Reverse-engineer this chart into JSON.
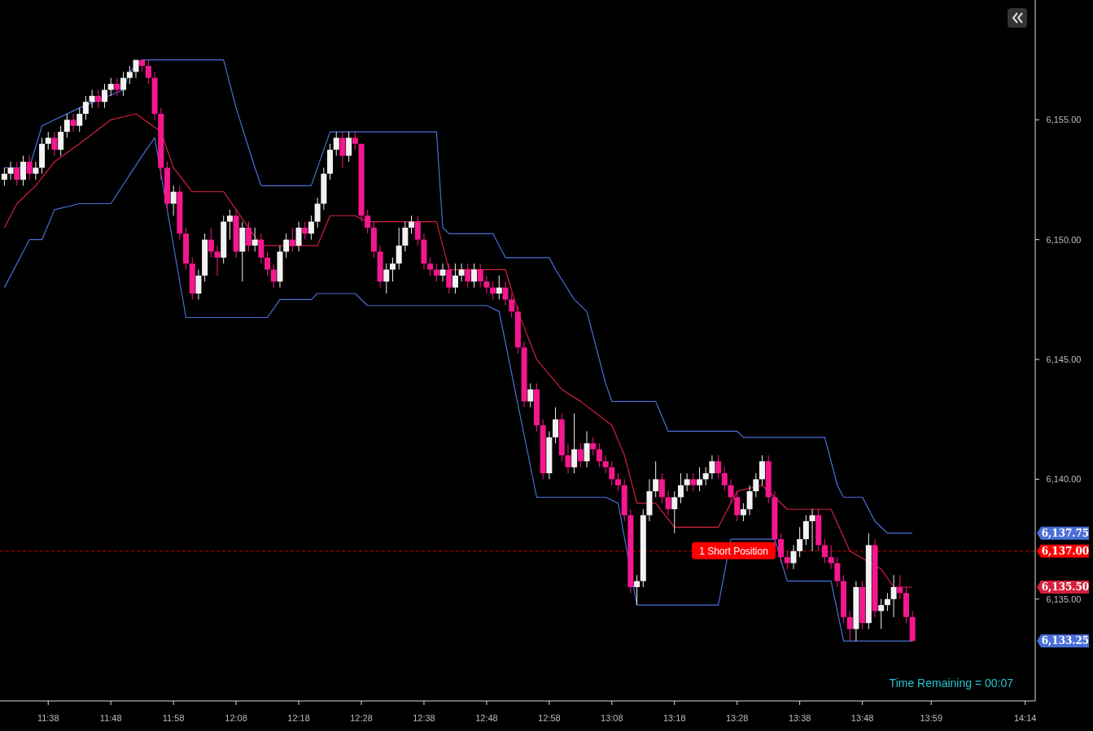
{
  "chart_data": {
    "type": "candlestick",
    "x": [
      11.5167,
      11.5333,
      11.55,
      11.5667,
      11.5833,
      11.6,
      11.6167,
      11.6333,
      11.65,
      11.6667,
      11.6833,
      11.7,
      11.7167,
      11.7333,
      11.75,
      11.7667,
      11.7833,
      11.8,
      11.8167,
      11.8333,
      11.85,
      11.8667,
      11.8833,
      11.9,
      11.9167,
      11.9333,
      11.95,
      11.9667,
      11.9833,
      12.0,
      12.0167,
      12.0333,
      12.05,
      12.0667,
      12.0833,
      12.1,
      12.1167,
      12.1333,
      12.15,
      12.1667,
      12.1833,
      12.2,
      12.2167,
      12.2333,
      12.25,
      12.2667,
      12.2833,
      12.3,
      12.3167,
      12.3333,
      12.35,
      12.3667,
      12.3833,
      12.4,
      12.4167,
      12.4333,
      12.45,
      12.4667,
      12.4833,
      12.5,
      12.5167,
      12.5333,
      12.55,
      12.5667,
      12.5833,
      12.6,
      12.6167,
      12.6333,
      12.65,
      12.6667,
      12.6833,
      12.7,
      12.7167,
      12.7333,
      12.75,
      12.7667,
      12.7833,
      12.8,
      12.8167,
      12.8333,
      12.85,
      12.8667,
      12.8833,
      12.9,
      12.9167,
      12.9333,
      12.95,
      12.9667,
      12.9833,
      13.0,
      13.0167,
      13.0333,
      13.05,
      13.0667,
      13.0833,
      13.1,
      13.1167,
      13.1333,
      13.15,
      13.1667,
      13.1833,
      13.2,
      13.2167,
      13.2333,
      13.25,
      13.2667,
      13.2833,
      13.3,
      13.3167,
      13.3333,
      13.35,
      13.3667,
      13.3833,
      13.4,
      13.4167,
      13.4333,
      13.45,
      13.4667,
      13.4833,
      13.5,
      13.5167,
      13.5333,
      13.55,
      13.5667,
      13.5833,
      13.6,
      13.6167,
      13.6333,
      13.65,
      13.6667,
      13.6833,
      13.7,
      13.7167,
      13.7333,
      13.75,
      13.7667,
      13.7833,
      13.8,
      13.8167,
      13.8333,
      13.85,
      13.8667,
      13.8833,
      13.9,
      13.9167,
      13.9333
    ],
    "ohlc": [
      [
        6152.5,
        6153.0,
        6152.25,
        6152.75
      ],
      [
        6152.75,
        6153.25,
        6152.5,
        6153.0
      ],
      [
        6153.0,
        6153.25,
        6152.25,
        6152.5
      ],
      [
        6152.5,
        6153.5,
        6152.25,
        6153.25
      ],
      [
        6153.25,
        6153.5,
        6152.5,
        6152.75
      ],
      [
        6152.75,
        6153.25,
        6152.5,
        6153.0
      ],
      [
        6153.0,
        6154.25,
        6152.75,
        6154.0
      ],
      [
        6154.0,
        6154.5,
        6153.75,
        6154.25
      ],
      [
        6154.25,
        6154.5,
        6153.5,
        6153.75
      ],
      [
        6153.75,
        6154.75,
        6153.5,
        6154.5
      ],
      [
        6154.5,
        6155.25,
        6154.25,
        6155.0
      ],
      [
        6155.0,
        6155.25,
        6154.5,
        6154.75
      ],
      [
        6154.75,
        6155.5,
        6154.5,
        6155.25
      ],
      [
        6155.25,
        6156.0,
        6155.0,
        6155.75
      ],
      [
        6155.75,
        6156.25,
        6155.5,
        6156.0
      ],
      [
        6156.0,
        6156.25,
        6155.5,
        6155.75
      ],
      [
        6155.75,
        6156.5,
        6155.5,
        6156.25
      ],
      [
        6156.25,
        6156.75,
        6156.0,
        6156.5
      ],
      [
        6156.5,
        6156.75,
        6156.0,
        6156.25
      ],
      [
        6156.25,
        6157.0,
        6156.0,
        6156.75
      ],
      [
        6156.75,
        6157.25,
        6156.5,
        6157.0
      ],
      [
        6157.0,
        6157.5,
        6156.75,
        6157.5
      ],
      [
        6157.5,
        6157.5,
        6157.0,
        6157.25
      ],
      [
        6157.25,
        6157.5,
        6156.5,
        6156.75
      ],
      [
        6156.75,
        6157.0,
        6155.0,
        6155.25
      ],
      [
        6155.25,
        6155.5,
        6152.5,
        6153.0
      ],
      [
        6153.0,
        6153.25,
        6151.25,
        6151.5
      ],
      [
        6151.5,
        6152.25,
        6151.0,
        6152.0
      ],
      [
        6152.0,
        6152.25,
        6150.0,
        6150.25
      ],
      [
        6150.25,
        6150.5,
        6148.75,
        6149.0
      ],
      [
        6149.0,
        6149.25,
        6147.5,
        6147.75
      ],
      [
        6147.75,
        6148.75,
        6147.5,
        6148.5
      ],
      [
        6148.5,
        6150.25,
        6148.25,
        6150.0
      ],
      [
        6150.0,
        6150.5,
        6149.25,
        6149.5
      ],
      [
        6149.5,
        6149.75,
        6148.5,
        6149.25
      ],
      [
        6149.25,
        6151.0,
        6149.0,
        6150.75
      ],
      [
        6150.75,
        6151.25,
        6150.0,
        6151.0
      ],
      [
        6151.0,
        6151.25,
        6149.25,
        6149.5
      ],
      [
        6149.5,
        6150.75,
        6148.25,
        6150.5
      ],
      [
        6150.5,
        6150.75,
        6149.5,
        6149.75
      ],
      [
        6149.75,
        6150.5,
        6149.5,
        6150.0
      ],
      [
        6150.0,
        6150.25,
        6149.0,
        6149.25
      ],
      [
        6149.25,
        6149.5,
        6148.5,
        6148.75
      ],
      [
        6148.75,
        6149.0,
        6148.0,
        6148.25
      ],
      [
        6148.25,
        6149.75,
        6148.0,
        6149.5
      ],
      [
        6149.5,
        6150.25,
        6149.25,
        6150.0
      ],
      [
        6150.0,
        6150.5,
        6149.5,
        6149.75
      ],
      [
        6149.75,
        6150.75,
        6149.5,
        6150.5
      ],
      [
        6150.5,
        6150.75,
        6150.0,
        6150.25
      ],
      [
        6150.25,
        6151.0,
        6150.0,
        6150.75
      ],
      [
        6150.75,
        6151.75,
        6150.5,
        6151.5
      ],
      [
        6151.5,
        6153.0,
        6151.25,
        6152.75
      ],
      [
        6152.75,
        6154.0,
        6152.5,
        6153.75
      ],
      [
        6153.75,
        6154.5,
        6153.5,
        6154.25
      ],
      [
        6154.25,
        6154.5,
        6153.0,
        6153.5
      ],
      [
        6153.5,
        6154.5,
        6153.25,
        6154.25
      ],
      [
        6154.25,
        6154.5,
        6153.75,
        6154.0
      ],
      [
        6154.0,
        6154.0,
        6150.75,
        6151.0
      ],
      [
        6151.0,
        6151.25,
        6150.25,
        6150.5
      ],
      [
        6150.5,
        6150.75,
        6149.25,
        6149.5
      ],
      [
        6149.5,
        6149.75,
        6148.0,
        6148.25
      ],
      [
        6148.25,
        6149.0,
        6147.75,
        6148.75
      ],
      [
        6148.75,
        6149.25,
        6148.25,
        6149.0
      ],
      [
        6149.0,
        6150.5,
        6148.75,
        6149.75
      ],
      [
        6149.75,
        6150.75,
        6149.5,
        6150.5
      ],
      [
        6150.5,
        6151.0,
        6150.25,
        6150.75
      ],
      [
        6150.75,
        6151.0,
        6149.75,
        6150.0
      ],
      [
        6150.0,
        6150.25,
        6148.75,
        6149.0
      ],
      [
        6149.0,
        6149.25,
        6148.5,
        6148.75
      ],
      [
        6148.75,
        6149.0,
        6148.25,
        6148.5
      ],
      [
        6148.5,
        6149.0,
        6148.25,
        6148.75
      ],
      [
        6148.75,
        6149.0,
        6147.75,
        6148.0
      ],
      [
        6148.0,
        6149.0,
        6147.75,
        6148.5
      ],
      [
        6148.5,
        6149.0,
        6148.25,
        6148.75
      ],
      [
        6148.75,
        6149.0,
        6148.0,
        6148.25
      ],
      [
        6148.25,
        6149.0,
        6148.0,
        6148.75
      ],
      [
        6148.75,
        6149.0,
        6148.0,
        6148.25
      ],
      [
        6148.25,
        6148.5,
        6147.75,
        6148.0
      ],
      [
        6148.0,
        6148.25,
        6147.5,
        6147.75
      ],
      [
        6147.75,
        6148.5,
        6147.5,
        6148.0
      ],
      [
        6148.0,
        6148.25,
        6147.25,
        6147.5
      ],
      [
        6147.5,
        6147.75,
        6146.75,
        6147.0
      ],
      [
        6147.0,
        6147.25,
        6145.25,
        6145.5
      ],
      [
        6145.5,
        6145.75,
        6143.0,
        6143.25
      ],
      [
        6143.25,
        6144.0,
        6143.0,
        6143.75
      ],
      [
        6143.75,
        6144.0,
        6142.0,
        6142.25
      ],
      [
        6142.25,
        6142.5,
        6140.0,
        6140.25
      ],
      [
        6140.25,
        6142.0,
        6140.0,
        6141.75
      ],
      [
        6141.75,
        6143.0,
        6141.5,
        6142.5
      ],
      [
        6142.5,
        6142.75,
        6140.75,
        6141.0
      ],
      [
        6141.0,
        6141.5,
        6140.25,
        6140.5
      ],
      [
        6140.5,
        6142.75,
        6140.25,
        6141.25
      ],
      [
        6141.25,
        6141.5,
        6140.5,
        6140.75
      ],
      [
        6140.75,
        6142.0,
        6140.5,
        6141.5
      ],
      [
        6141.5,
        6141.75,
        6141.0,
        6141.25
      ],
      [
        6141.25,
        6141.5,
        6140.5,
        6140.75
      ],
      [
        6140.75,
        6141.0,
        6140.25,
        6140.5
      ],
      [
        6140.5,
        6140.75,
        6139.75,
        6140.0
      ],
      [
        6140.0,
        6140.25,
        6139.5,
        6139.75
      ],
      [
        6139.75,
        6140.0,
        6138.25,
        6138.5
      ],
      [
        6138.5,
        6138.75,
        6135.25,
        6135.5
      ],
      [
        6135.5,
        6136.0,
        6134.75,
        6135.75
      ],
      [
        6135.75,
        6138.75,
        6135.5,
        6138.5
      ],
      [
        6138.5,
        6140.0,
        6138.25,
        6139.5
      ],
      [
        6139.5,
        6140.75,
        6139.25,
        6140.0
      ],
      [
        6140.0,
        6140.25,
        6139.0,
        6139.25
      ],
      [
        6139.25,
        6139.5,
        6138.5,
        6138.75
      ],
      [
        6138.75,
        6139.5,
        6137.75,
        6139.25
      ],
      [
        6139.25,
        6140.25,
        6139.0,
        6139.75
      ],
      [
        6139.75,
        6140.25,
        6139.5,
        6140.0
      ],
      [
        6140.0,
        6140.25,
        6139.5,
        6139.75
      ],
      [
        6139.75,
        6140.5,
        6139.5,
        6140.0
      ],
      [
        6140.0,
        6140.5,
        6139.75,
        6140.25
      ],
      [
        6140.25,
        6141.0,
        6140.0,
        6140.75
      ],
      [
        6140.75,
        6141.0,
        6140.0,
        6140.25
      ],
      [
        6140.25,
        6140.5,
        6139.5,
        6139.75
      ],
      [
        6139.75,
        6140.0,
        6139.0,
        6139.25
      ],
      [
        6139.25,
        6139.5,
        6138.25,
        6138.5
      ],
      [
        6138.5,
        6139.0,
        6138.25,
        6138.75
      ],
      [
        6138.75,
        6139.75,
        6138.5,
        6139.5
      ],
      [
        6139.5,
        6140.25,
        6139.25,
        6140.0
      ],
      [
        6140.0,
        6141.0,
        6139.75,
        6140.75
      ],
      [
        6140.75,
        6141.0,
        6139.0,
        6139.25
      ],
      [
        6139.25,
        6139.5,
        6137.25,
        6137.5
      ],
      [
        6137.5,
        6137.75,
        6136.5,
        6136.75
      ],
      [
        6136.75,
        6137.0,
        6136.25,
        6136.5
      ],
      [
        6136.5,
        6137.25,
        6136.25,
        6137.0
      ],
      [
        6137.0,
        6138.0,
        6136.75,
        6137.5
      ],
      [
        6137.5,
        6138.5,
        6137.25,
        6138.25
      ],
      [
        6138.25,
        6138.75,
        6137.0,
        6138.5
      ],
      [
        6138.5,
        6138.75,
        6137.0,
        6137.25
      ],
      [
        6137.25,
        6137.5,
        6136.5,
        6136.75
      ],
      [
        6136.75,
        6137.25,
        6136.25,
        6136.5
      ],
      [
        6136.5,
        6136.75,
        6135.5,
        6135.75
      ],
      [
        6135.75,
        6136.0,
        6134.0,
        6134.25
      ],
      [
        6134.25,
        6134.5,
        6133.25,
        6133.75
      ],
      [
        6133.75,
        6135.75,
        6133.25,
        6135.5
      ],
      [
        6135.5,
        6135.75,
        6133.75,
        6134.0
      ],
      [
        6134.0,
        6137.75,
        6133.75,
        6137.25
      ],
      [
        6137.25,
        6137.5,
        6134.25,
        6134.5
      ],
      [
        6134.5,
        6135.0,
        6133.75,
        6134.75
      ],
      [
        6134.75,
        6135.25,
        6134.5,
        6135.0
      ],
      [
        6135.0,
        6136.0,
        6134.25,
        6135.5
      ],
      [
        6135.5,
        6136.0,
        6135.0,
        6135.25
      ],
      [
        6135.25,
        6135.5,
        6134.0,
        6134.25
      ],
      [
        6134.25,
        6134.5,
        6133.25,
        6133.25
      ]
    ],
    "series": [
      {
        "type": "line",
        "color": "#4a6fd8",
        "x": [
          11.5167,
          11.5833,
          11.6167,
          11.7167,
          11.8333,
          11.85,
          11.8833,
          12.1,
          12.1333,
          12.1833,
          12.2,
          12.3333,
          12.3833,
          12.6667,
          12.6833,
          12.7,
          12.8167,
          12.85,
          12.9667,
          12.9833,
          13.0333,
          13.0667,
          13.1,
          13.1167,
          13.1333,
          13.25,
          13.2833,
          13.4667,
          13.4833,
          13.7,
          13.7333,
          13.75,
          13.8,
          13.8333,
          13.8667,
          13.9333
        ],
        "values": [
          6153.0,
          6153.0,
          6154.75,
          6155.5,
          6156.25,
          6157.0,
          6157.5,
          6157.5,
          6155.5,
          6153.0,
          6152.25,
          6152.25,
          6154.5,
          6154.5,
          6150.5,
          6150.25,
          6150.25,
          6149.25,
          6149.25,
          6148.75,
          6147.5,
          6147.0,
          6145.0,
          6144.0,
          6143.25,
          6143.25,
          6142.0,
          6142.0,
          6141.75,
          6141.75,
          6139.75,
          6139.25,
          6139.25,
          6138.25,
          6137.75,
          6137.75
        ]
      },
      {
        "type": "line",
        "color": "#d4203c",
        "x": [
          11.5167,
          11.55,
          11.6,
          11.65,
          11.7167,
          11.8,
          11.8667,
          11.9333,
          11.9667,
          12.0167,
          12.1,
          12.1333,
          12.2,
          12.35,
          12.3833,
          12.45,
          12.4833,
          12.6667,
          12.7,
          12.85,
          12.8833,
          12.9333,
          13.0,
          13.05,
          13.1333,
          13.1667,
          13.2,
          13.25,
          13.3,
          13.4167,
          13.4667,
          13.5333,
          13.6,
          13.7167,
          13.7667,
          13.85,
          13.8833,
          13.9333
        ],
        "values": [
          6150.5,
          6151.5,
          6152.25,
          6153.25,
          6154.0,
          6155.0,
          6155.25,
          6154.5,
          6153.0,
          6152.0,
          6152.0,
          6151.25,
          6149.75,
          6149.75,
          6151.0,
          6151.0,
          6150.75,
          6150.75,
          6148.75,
          6148.75,
          6147.0,
          6145.0,
          6143.75,
          6143.25,
          6142.25,
          6141.0,
          6139.0,
          6139.0,
          6138.0,
          6138.0,
          6139.5,
          6139.75,
          6138.75,
          6138.75,
          6137.0,
          6136.25,
          6135.5,
          6135.5
        ]
      },
      {
        "type": "line",
        "color": "#4a6fd8",
        "x": [
          11.5167,
          11.55,
          11.5833,
          11.6167,
          11.65,
          11.7167,
          11.8,
          11.8833,
          11.9167,
          12.0,
          12.2167,
          12.25,
          12.3333,
          12.35,
          12.45,
          12.4833,
          12.8,
          12.8333,
          12.9333,
          13.1167,
          13.15,
          13.2,
          13.4167,
          13.45,
          13.5667,
          13.6,
          13.7167,
          13.75,
          13.9333
        ],
        "values": [
          6148.0,
          6149.0,
          6150.0,
          6150.0,
          6151.25,
          6151.5,
          6151.5,
          6153.5,
          6154.25,
          6146.75,
          6146.75,
          6147.5,
          6147.5,
          6147.75,
          6147.75,
          6147.25,
          6147.25,
          6147.0,
          6139.25,
          6139.25,
          6139.0,
          6134.75,
          6134.75,
          6137.5,
          6137.5,
          6135.75,
          6135.75,
          6133.25,
          6133.25
        ]
      }
    ],
    "xlim": [
      11.505,
      14.26
    ],
    "xticks": [
      {
        "value": 11.6333,
        "label": "11:38"
      },
      {
        "value": 11.8,
        "label": "11:48"
      },
      {
        "value": 11.9667,
        "label": "11:58"
      },
      {
        "value": 12.1333,
        "label": "12:08"
      },
      {
        "value": 12.3,
        "label": "12:18"
      },
      {
        "value": 12.4667,
        "label": "12:28"
      },
      {
        "value": 12.6333,
        "label": "12:38"
      },
      {
        "value": 12.8,
        "label": "12:48"
      },
      {
        "value": 12.9667,
        "label": "12:58"
      },
      {
        "value": 13.1333,
        "label": "13:08"
      },
      {
        "value": 13.3,
        "label": "13:18"
      },
      {
        "value": 13.4667,
        "label": "13:28"
      },
      {
        "value": 13.6333,
        "label": "13:38"
      },
      {
        "value": 13.8,
        "label": "13:48"
      },
      {
        "value": 13.9833,
        "label": "13:59"
      },
      {
        "value": 14.2333,
        "label": "14:14"
      }
    ],
    "ylim": [
      6130.75,
      6160
    ],
    "yticks": [
      {
        "value": 6133.25,
        "label": "6,133.25"
      },
      {
        "value": 6135.5,
        "label": "6,135.50"
      },
      {
        "value": 6137,
        "label": "6,137.00"
      },
      {
        "value": 6137.75,
        "label": "6,137.75"
      },
      {
        "value": 6135,
        "label": "6,135.00"
      },
      {
        "value": 6140,
        "label": "6,140.00"
      },
      {
        "value": 6145,
        "label": "6,145.00"
      },
      {
        "value": 6150,
        "label": "6,150.00"
      },
      {
        "value": 6155,
        "label": "6,155.00"
      }
    ],
    "ref_lines": [
      {
        "axis": "y",
        "value": 6137,
        "label": "1 Short Position",
        "color": "#ff0000",
        "line_style": "dashed"
      }
    ],
    "annotations": [
      "Time Remaining = 00:07"
    ],
    "grid": false
  }
}
